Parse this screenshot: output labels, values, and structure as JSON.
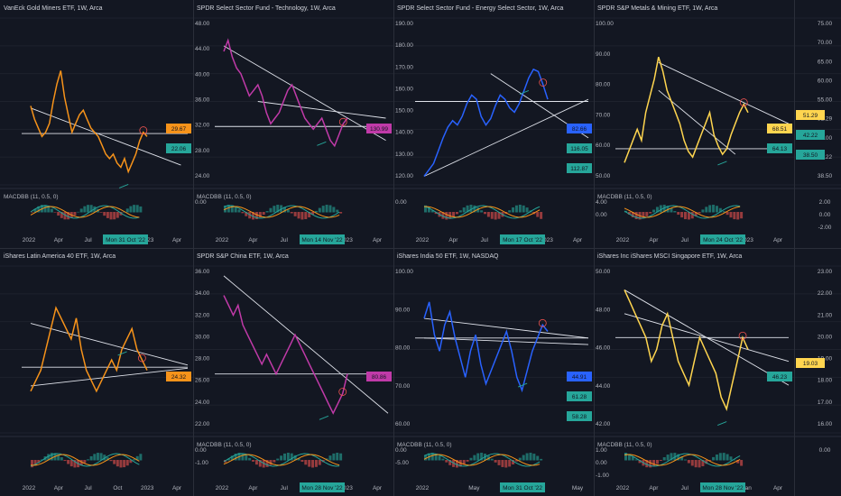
{
  "colors": {
    "bg": "#131722",
    "grid": "#1e222d",
    "text": "#b2b5be",
    "orange": "#f7931a",
    "magenta": "#c03aa8",
    "blue": "#2962ff",
    "yellow": "#ffd54f",
    "white": "#e0e3eb",
    "green": "#26a69a",
    "red": "#ef5350"
  },
  "chart_data": [
    {
      "type": "line",
      "title": "VanEck Gold Miners ETF, 1W, Arca",
      "color": "orange",
      "y_ticks": [],
      "ylim": [
        18,
        56
      ],
      "x_ticks": [
        "2022",
        "Apr",
        "Jul",
        "Oct",
        "2023",
        "Apr"
      ],
      "values": [
        36,
        33,
        31,
        29,
        30,
        32,
        37,
        41,
        44,
        38,
        34,
        30,
        32,
        34,
        35,
        33,
        31,
        30,
        29,
        27,
        25,
        24,
        25,
        23,
        22,
        24,
        21,
        23,
        25,
        28,
        30,
        29
      ],
      "price_labels": [
        {
          "text": "29.67",
          "bg": "orange"
        },
        {
          "text": "22.06",
          "bg": "green"
        }
      ],
      "hline": 29.7,
      "trend_lines": [
        [
          0,
          35.5,
          40,
          22.5
        ]
      ],
      "macd_label": "MACDBB (11, 0.5, 0)",
      "macd_ticks": [],
      "date_badge": "Mon 31 Oct '22"
    },
    {
      "type": "line",
      "title": "SPDR Select Sector Fund - Technology, 1W, Arca",
      "color": "magenta",
      "y_ticks": [
        "48.00",
        "44.00",
        "40.00",
        "36.00",
        "32.00",
        "28.00",
        "24.00"
      ],
      "ylim": [
        20,
        50
      ],
      "x_ticks": [
        "2022",
        "Apr",
        "Jul",
        "Oct",
        "2023",
        "Apr"
      ],
      "values": [
        44,
        46,
        43,
        41,
        40,
        38,
        36,
        37,
        38,
        36,
        33,
        31,
        32,
        33,
        35,
        37,
        38,
        36,
        34,
        32,
        31,
        30,
        31,
        32,
        30,
        28,
        27,
        29,
        31,
        32
      ],
      "price_labels": [
        {
          "text": "130.99",
          "bg": "magenta"
        }
      ],
      "hline": 30.5,
      "trend_lines": [
        [
          0,
          45,
          38,
          28
        ],
        [
          8,
          35,
          38,
          32
        ]
      ],
      "macd_label": "MACDBB (11, 0.5, 0)",
      "macd_ticks": [
        "0.00"
      ],
      "date_badge": "Mon 14 Nov '22"
    },
    {
      "type": "line",
      "title": "SPDR Select Sector Fund - Energy Select Sector, 1W, Arca",
      "color": "blue",
      "y_ticks": [
        "190.00",
        "180.00",
        "170.00",
        "160.00",
        "150.00",
        "140.00",
        "130.00",
        "120.00"
      ],
      "ylim": [
        118,
        196
      ],
      "x_ticks": [
        "2022",
        "Apr",
        "Jul",
        "Oct",
        "2023",
        "Apr"
      ],
      "values": [
        122,
        125,
        128,
        134,
        140,
        145,
        148,
        146,
        150,
        156,
        160,
        158,
        150,
        146,
        149,
        155,
        160,
        158,
        154,
        152,
        156,
        162,
        168,
        172,
        171,
        165,
        158
      ],
      "price_labels": [
        {
          "text": "82.66",
          "bg": "blue"
        },
        {
          "text": "116.05",
          "bg": "green"
        },
        {
          "text": "112.87",
          "bg": "green"
        }
      ],
      "hline": 157,
      "trend_lines": [
        [
          0,
          122,
          40,
          158
        ],
        [
          14,
          170,
          40,
          140
        ]
      ],
      "macd_label": "",
      "macd_ticks": [
        "0.00"
      ],
      "date_badge": "Mon 17 Oct '22"
    },
    {
      "type": "line",
      "title": "SPDR S&P Metals & Mining ETF, 1W, Arca",
      "color": "yellow",
      "y_ticks": [
        "100.00",
        "90.00",
        "80.00",
        "70.00",
        "60.00",
        "50.00"
      ],
      "ylim": [
        44,
        104
      ],
      "x_ticks": [
        "2022",
        "Apr",
        "Jul",
        "Oct",
        "2023",
        "Apr"
      ],
      "values": [
        52,
        56,
        60,
        64,
        60,
        70,
        76,
        82,
        90,
        85,
        78,
        74,
        70,
        66,
        60,
        56,
        54,
        58,
        62,
        66,
        70,
        62,
        58,
        55,
        57,
        62,
        66,
        70,
        73,
        70
      ],
      "price_labels": [
        {
          "text": "68.51",
          "bg": "yellow"
        },
        {
          "text": "64.13",
          "bg": "green"
        }
      ],
      "hline": 57,
      "trend_lines": [
        [
          8,
          88,
          40,
          66
        ],
        [
          8,
          78,
          26,
          55
        ]
      ],
      "macd_label": "MACDBB (11, 0.5, 0)",
      "macd_ticks": [
        "4.00",
        "0.00"
      ],
      "date_badge": "Mon 24 Oct '22"
    },
    {
      "type": "line",
      "title": "",
      "color": "blue",
      "y_ticks": [
        "75.00",
        "70.00",
        "65.00",
        "60.00",
        "55.00",
        "51.29",
        "45.00",
        "42.22",
        "38.50"
      ],
      "ylim": [
        35,
        78
      ],
      "x_ticks": [],
      "values": [],
      "price_labels": [
        {
          "text": "51.29",
          "bg": "yellow"
        },
        {
          "text": "42.22",
          "bg": "green"
        },
        {
          "text": "38.50",
          "bg": "green"
        }
      ],
      "hline": null,
      "trend_lines": [],
      "macd_label": "",
      "macd_ticks": [
        "2.00",
        "0.00",
        "-2.00"
      ],
      "date_badge": ""
    },
    {
      "type": "line",
      "title": "iShares Latin America 40 ETF, 1W, Arca",
      "color": "orange",
      "y_ticks": [],
      "ylim": [
        18,
        34
      ],
      "x_ticks": [
        "2022",
        "Apr",
        "Jul",
        "Oct",
        "2023",
        "Apr"
      ],
      "values": [
        22,
        23,
        24,
        26,
        28,
        30,
        29,
        28,
        27,
        29,
        26,
        24,
        23,
        22,
        23,
        24,
        25,
        24,
        26,
        27,
        28,
        26,
        25,
        24
      ],
      "price_labels": [
        {
          "text": "24.32",
          "bg": "orange"
        }
      ],
      "hline": 24.3,
      "trend_lines": [
        [
          0,
          28.5,
          45,
          24.5
        ],
        [
          0,
          22.5,
          45,
          24.2
        ]
      ],
      "macd_label": "",
      "macd_ticks": [],
      "date_badge": ""
    },
    {
      "type": "line",
      "title": "SPDR S&P China ETF, 1W, Arca",
      "color": "magenta",
      "y_ticks": [
        "36.00",
        "34.00",
        "32.00",
        "30.00",
        "28.00",
        "26.00",
        "24.00",
        "22.00"
      ],
      "ylim": [
        20,
        37
      ],
      "x_ticks": [
        "2022",
        "Apr",
        "Jul",
        "Oct",
        "2023",
        "Apr"
      ],
      "values": [
        34,
        33,
        32,
        33,
        31,
        30,
        29,
        28,
        27,
        28,
        27,
        26,
        27,
        28,
        29,
        30,
        29,
        28,
        27,
        26,
        25,
        24,
        23,
        22,
        23,
        24,
        26
      ],
      "price_labels": [
        {
          "text": "80.86",
          "bg": "magenta"
        }
      ],
      "hline": 26,
      "trend_lines": [
        [
          0,
          36,
          42,
          22
        ]
      ],
      "macd_label": "MACDBB (11, 0.5, 0)",
      "macd_ticks": [
        "0.00",
        "-1.00"
      ],
      "date_badge": "Mon 28 Nov '22"
    },
    {
      "type": "line",
      "title": "iShares India 50 ETF, 1W, NASDAQ",
      "color": "blue",
      "y_ticks": [
        "100.00",
        "90.00",
        "80.00",
        "70.00",
        "60.00"
      ],
      "ylim": [
        55,
        106
      ],
      "x_ticks": [
        "2022",
        "May",
        "Sep",
        "May"
      ],
      "values": [
        90,
        95,
        85,
        80,
        88,
        92,
        84,
        78,
        72,
        80,
        85,
        76,
        70,
        74,
        78,
        82,
        86,
        80,
        72,
        68,
        74,
        80,
        84,
        88,
        86
      ],
      "price_labels": [
        {
          "text": "44.91",
          "bg": "blue"
        },
        {
          "text": "61.28",
          "bg": "green"
        },
        {
          "text": "58.28",
          "bg": "green"
        }
      ],
      "hline": 84,
      "trend_lines": [
        [
          0,
          90,
          40,
          84
        ],
        [
          0,
          84,
          40,
          82
        ]
      ],
      "macd_label": "MACDBB (11, 0.5, 0)",
      "macd_ticks": [
        "0.00",
        "-5.00"
      ],
      "date_badge": "Mon 31 Oct '22"
    },
    {
      "type": "line",
      "title": "iShares Inc iShares MSCI Singapore ETF, 1W, Arca",
      "color": "yellow",
      "y_ticks": [
        "50.00",
        "48.00",
        "46.00",
        "44.00",
        "42.00"
      ],
      "ylim": [
        38,
        52
      ],
      "x_ticks": [
        "2022",
        "Apr",
        "Jul",
        "Oct",
        "Jan",
        "Apr"
      ],
      "values": [
        50,
        49,
        48,
        47,
        46,
        44,
        45,
        47,
        48,
        46,
        44,
        43,
        42,
        44,
        46,
        45,
        44,
        43,
        41,
        40,
        42,
        44,
        46,
        45
      ],
      "price_labels": [
        {
          "text": "46.23",
          "bg": "green"
        }
      ],
      "hline": 46,
      "trend_lines": [
        [
          0,
          50,
          40,
          42
        ],
        [
          0,
          48,
          40,
          44
        ]
      ],
      "macd_label": "MACDBB (11, 0.5, 0)",
      "macd_ticks": [
        "1.00",
        "0.00",
        "-1.00"
      ],
      "date_badge": "Mon 28 Nov '22"
    },
    {
      "type": "line",
      "title": "",
      "color": "yellow",
      "y_ticks": [
        "23.00",
        "22.00",
        "21.00",
        "20.00",
        "19.00",
        "18.00",
        "17.00",
        "16.00"
      ],
      "ylim": [
        15.5,
        23.5
      ],
      "x_ticks": [],
      "values": [],
      "price_labels": [
        {
          "text": "19.03",
          "bg": "yellow"
        }
      ],
      "hline": null,
      "trend_lines": [],
      "macd_label": "",
      "macd_ticks": [
        "0.00"
      ],
      "date_badge": ""
    }
  ]
}
